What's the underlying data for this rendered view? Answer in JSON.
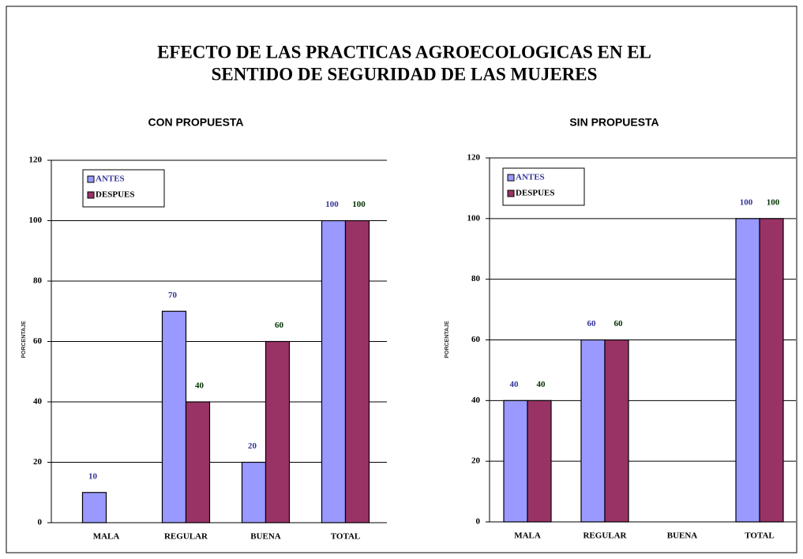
{
  "title": "EFECTO DE LAS PRACTICAS AGROECOLOGICAS EN EL SENTIDO DE SEGURIDAD DE LAS MUJERES",
  "chart_data": [
    {
      "type": "bar",
      "title": "CON PROPUESTA",
      "y_label": "PORCENTAJE",
      "categories": [
        "MALA",
        "REGULAR",
        "BUENA",
        "TOTAL"
      ],
      "series": [
        {
          "name": "ANTES",
          "color": "#9999ff",
          "label_color": "#333399",
          "values": [
            10,
            70,
            20,
            100
          ]
        },
        {
          "name": "DESPUES",
          "color": "#993366",
          "label_color": "#003300",
          "values": [
            null,
            40,
            60,
            100
          ]
        }
      ],
      "ylim": [
        0,
        120
      ],
      "yticks": [
        0,
        20,
        40,
        60,
        80,
        100,
        120
      ],
      "grid": true,
      "legend": "upper left"
    },
    {
      "type": "bar",
      "title": "SIN PROPUESTA",
      "y_label": "PORCENTAJE",
      "categories": [
        "MALA",
        "REGULAR",
        "BUENA",
        "TOTAL"
      ],
      "series": [
        {
          "name": "ANTES",
          "color": "#9999ff",
          "label_color": "#333399",
          "values": [
            40,
            60,
            null,
            100
          ]
        },
        {
          "name": "DESPUES",
          "color": "#993366",
          "label_color": "#003300",
          "values": [
            40,
            60,
            null,
            100
          ]
        }
      ],
      "ylim": [
        0,
        120
      ],
      "yticks": [
        0,
        20,
        40,
        60,
        80,
        100,
        120
      ],
      "grid": true,
      "legend": "upper left"
    }
  ]
}
